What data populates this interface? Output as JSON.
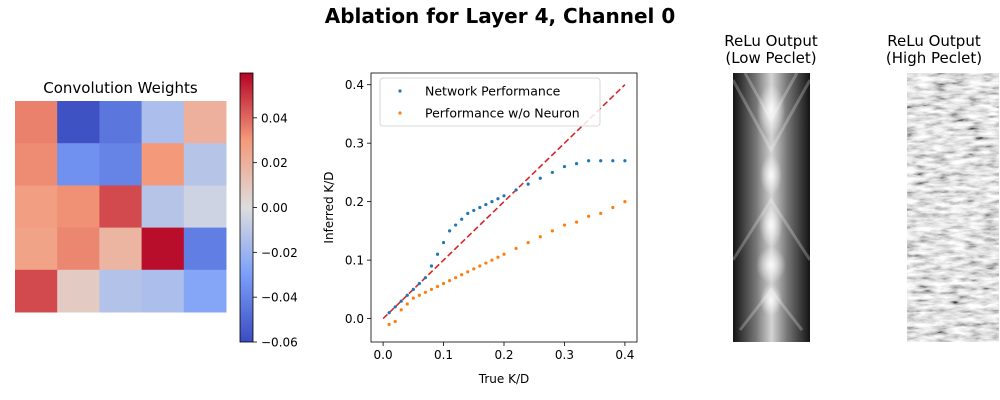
{
  "title": "Ablation for Layer 4, Channel 0",
  "heatmap": {
    "title": "Convolution Weights",
    "matrix": [
      [
        0.035,
        -0.058,
        -0.045,
        -0.015,
        0.02
      ],
      [
        0.033,
        -0.035,
        -0.04,
        0.03,
        -0.012
      ],
      [
        0.028,
        0.032,
        0.046,
        -0.012,
        -0.005
      ],
      [
        0.026,
        0.034,
        0.018,
        0.058,
        -0.042
      ],
      [
        0.046,
        0.008,
        -0.013,
        -0.015,
        -0.027
      ]
    ],
    "colorbar": {
      "vmin": -0.06,
      "vmax": 0.06,
      "ticks": [
        -0.06,
        -0.04,
        -0.02,
        0.0,
        0.02,
        0.04
      ],
      "tick_labels": [
        "−0.06",
        "−0.04",
        "−0.02",
        "0.00",
        "0.02",
        "0.04"
      ],
      "colormap": "coolwarm"
    }
  },
  "chart_data": {
    "type": "scatter",
    "xlabel": "True K/D",
    "ylabel": "Inferred K/D",
    "xlim": [
      -0.02,
      0.42
    ],
    "ylim": [
      -0.04,
      0.42
    ],
    "xticks": [
      0.0,
      0.1,
      0.2,
      0.3,
      0.4
    ],
    "xtick_labels": [
      "0.0",
      "0.1",
      "0.2",
      "0.3",
      "0.4"
    ],
    "yticks": [
      0.0,
      0.1,
      0.2,
      0.3,
      0.4
    ],
    "ytick_labels": [
      "0.0",
      "0.1",
      "0.2",
      "0.3",
      "0.4"
    ],
    "legend_position": "top-left",
    "reference_line": {
      "x": [
        0.0,
        0.4
      ],
      "y": [
        0.0,
        0.4
      ],
      "color": "#d62728",
      "style": "dashed"
    },
    "series": [
      {
        "name": "Network Performance",
        "color": "#1f77b4",
        "x": [
          0.01,
          0.02,
          0.03,
          0.04,
          0.05,
          0.06,
          0.07,
          0.08,
          0.09,
          0.1,
          0.11,
          0.12,
          0.13,
          0.14,
          0.15,
          0.16,
          0.17,
          0.18,
          0.19,
          0.2,
          0.22,
          0.24,
          0.26,
          0.28,
          0.3,
          0.32,
          0.34,
          0.36,
          0.38,
          0.4
        ],
        "y": [
          0.01,
          0.02,
          0.03,
          0.04,
          0.05,
          0.06,
          0.07,
          0.09,
          0.11,
          0.13,
          0.15,
          0.16,
          0.17,
          0.18,
          0.185,
          0.19,
          0.195,
          0.2,
          0.205,
          0.21,
          0.22,
          0.23,
          0.24,
          0.25,
          0.26,
          0.265,
          0.27,
          0.27,
          0.27,
          0.27
        ]
      },
      {
        "name": "Performance w/o Neuron",
        "color": "#ff7f0e",
        "x": [
          0.01,
          0.02,
          0.03,
          0.04,
          0.05,
          0.06,
          0.07,
          0.08,
          0.09,
          0.1,
          0.11,
          0.12,
          0.13,
          0.14,
          0.15,
          0.16,
          0.17,
          0.18,
          0.19,
          0.2,
          0.22,
          0.24,
          0.26,
          0.28,
          0.3,
          0.32,
          0.34,
          0.36,
          0.38,
          0.4
        ],
        "y": [
          -0.01,
          -0.005,
          0.015,
          0.025,
          0.035,
          0.04,
          0.045,
          0.05,
          0.055,
          0.06,
          0.065,
          0.07,
          0.075,
          0.08,
          0.085,
          0.09,
          0.095,
          0.1,
          0.105,
          0.11,
          0.12,
          0.13,
          0.14,
          0.15,
          0.16,
          0.165,
          0.175,
          0.18,
          0.19,
          0.2
        ]
      }
    ]
  },
  "relu_low": {
    "title": "ReLu Output\n(Low Peclet)"
  },
  "relu_high": {
    "title": "ReLu Output\n(High Peclet)"
  }
}
